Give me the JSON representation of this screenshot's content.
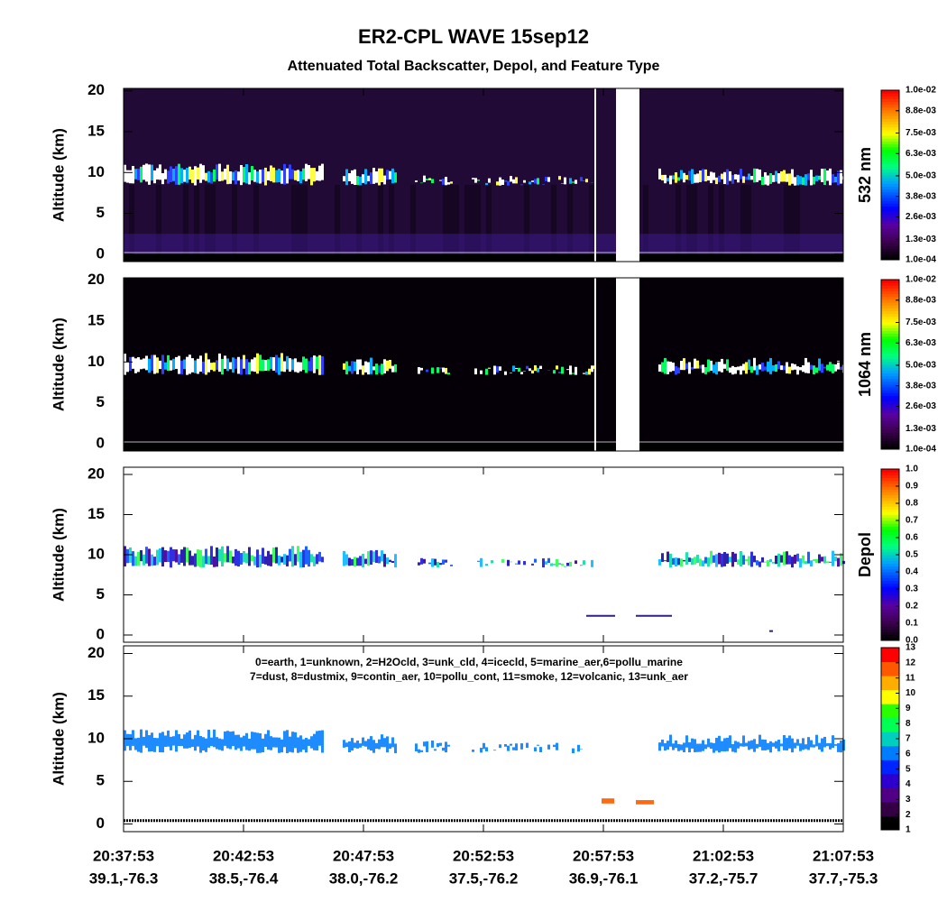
{
  "header": {
    "title": "ER2-CPL WAVE 15sep12",
    "subtitle": "Attenuated Total Backscatter, Depol, and Feature Type"
  },
  "chart_data": [
    {
      "type": "backscatter",
      "y_label": "Altitude (km)",
      "ylim": [
        -0.9,
        20.3
      ],
      "yticks": [
        0,
        5,
        10,
        15,
        20
      ],
      "xlim": [
        "20:37:53",
        "21:07:53"
      ],
      "xticks": [
        "20:37:53",
        "20:42:53",
        "20:47:53",
        "20:52:53",
        "20:57:53",
        "21:02:53",
        "21:07:53"
      ],
      "colorbar": {
        "label": "532 nm",
        "clim": [
          0.0001,
          0.01
        ],
        "ticks": [
          {
            "value": 0.0001,
            "label": "1.0e-04"
          },
          {
            "value": 0.0013,
            "label": "1.3e-03"
          },
          {
            "value": 0.0026,
            "label": "2.6e-03"
          },
          {
            "value": 0.0038,
            "label": "3.8e-03"
          },
          {
            "value": 0.005,
            "label": "5.0e-03"
          },
          {
            "value": 0.0063,
            "label": "6.3e-03"
          },
          {
            "value": 0.0075,
            "label": "7.5e-03"
          },
          {
            "value": 0.0088,
            "label": "8.8e-03"
          },
          {
            "value": 0.01,
            "label": "1.0e-02"
          }
        ]
      }
    },
    {
      "type": "backscatter",
      "y_label": "Altitude (km)",
      "ylim": [
        -0.9,
        20.3
      ],
      "yticks": [
        0,
        5,
        10,
        15,
        20
      ],
      "xlim": [
        "20:37:53",
        "21:07:53"
      ],
      "xticks": [
        "20:37:53",
        "20:42:53",
        "20:47:53",
        "20:52:53",
        "20:57:53",
        "21:02:53",
        "21:07:53"
      ],
      "colorbar": {
        "label": "1064 nm",
        "clim": [
          0.0001,
          0.01
        ],
        "ticks": [
          {
            "value": 0.0001,
            "label": "1.0e-04"
          },
          {
            "value": 0.0013,
            "label": "1.3e-03"
          },
          {
            "value": 0.0026,
            "label": "2.6e-03"
          },
          {
            "value": 0.0038,
            "label": "3.8e-03"
          },
          {
            "value": 0.005,
            "label": "5.0e-03"
          },
          {
            "value": 0.0063,
            "label": "6.3e-03"
          },
          {
            "value": 0.0075,
            "label": "7.5e-03"
          },
          {
            "value": 0.0088,
            "label": "8.8e-03"
          },
          {
            "value": 0.01,
            "label": "1.0e-02"
          }
        ]
      }
    },
    {
      "type": "depol",
      "y_label": "Altitude (km)",
      "ylim": [
        -0.9,
        20.9
      ],
      "yticks": [
        0,
        5,
        10,
        15,
        20
      ],
      "xlim": [
        "20:37:53",
        "21:07:53"
      ],
      "xticks": [
        "20:37:53",
        "20:42:53",
        "20:47:53",
        "20:52:53",
        "20:57:53",
        "21:02:53",
        "21:07:53"
      ],
      "colorbar": {
        "label": "Depol",
        "clim": [
          0,
          1
        ],
        "ticks": [
          {
            "value": 0,
            "label": "0.0"
          },
          0.1,
          0.2,
          0.3,
          0.4,
          0.5,
          0.6,
          0.7,
          0.8,
          0.9,
          {
            "value": 1,
            "label": "1.0"
          }
        ]
      }
    },
    {
      "type": "feature",
      "y_label": "Altitude (km)",
      "ylim": [
        -0.9,
        20.9
      ],
      "yticks": [
        0,
        5,
        10,
        15,
        20
      ],
      "xlim": [
        "20:37:53",
        "21:07:53"
      ],
      "xticks": [
        "20:37:53",
        "20:42:53",
        "20:47:53",
        "20:52:53",
        "20:57:53",
        "21:02:53",
        "21:07:53"
      ],
      "xtick_locations": [
        "39.1,-76.3",
        "38.5,-76.4",
        "38.0,-76.2",
        "37.5,-76.2",
        "36.9,-76.1",
        "37.2,-75.7",
        "37.7,-75.3"
      ],
      "annotations": [
        "0=earth, 1=unknown, 2=H2Ocld, 3=unk_cld, 4=icecld, 5=marine_aer,6=pollu_marine",
        "7=dust, 8=dustmix, 9=contin_aer, 10=pollu_cont, 11=smoke, 12=volcanic, 13=unk_aer"
      ],
      "colorbar": {
        "label": "",
        "clim": [
          1,
          13
        ],
        "ticks": [
          1,
          2,
          3,
          4,
          5,
          6,
          7,
          8,
          9,
          10,
          11,
          12,
          13
        ]
      }
    }
  ]
}
